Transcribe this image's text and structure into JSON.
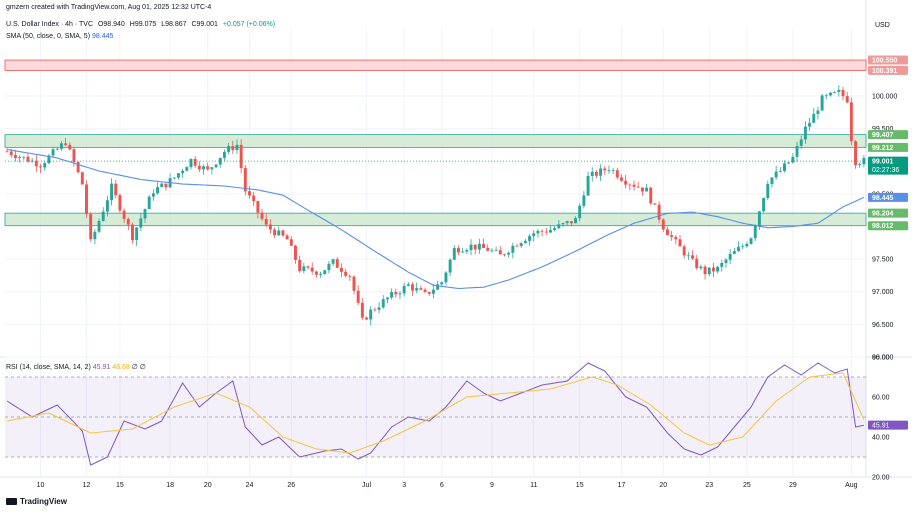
{
  "header": {
    "created_by": "gmzern created with TradingView.com, Aug 01, 2025 12:32 UTC-4",
    "symbol_line": "U.S. Dollar Index · 4h · TVC",
    "ohlc": {
      "open": "O98.940",
      "high": "H99.075",
      "low": "L98.867",
      "close": "C99.001",
      "change": "+0.057 (+0.06%)"
    },
    "sma_label": "SMA (50, close, 0, SMA, 5)",
    "sma_value": "98.445",
    "rsi_label": "RSI (14, close, SMA, 14, 2)",
    "rsi_value": "45.91",
    "rsi_ma_value": "48.68",
    "rsi_placeholders": "∅ ∅"
  },
  "currency": "USD",
  "branding": "TradingView",
  "colors": {
    "up": "#26a69a",
    "down": "#ef5350",
    "sma": "#5b8ee6",
    "rsi": "#7e57c2",
    "rsi_ma": "#f5c542",
    "zone_green": "#c8e6c9",
    "zone_red": "#ffcdd2"
  },
  "chart_data": [
    {
      "type": "candlestick",
      "title": "U.S. Dollar Index · 4h · TVC",
      "ylabel": "USD",
      "ylim": [
        96.0,
        100.75
      ],
      "price_ticks": [
        "100.000",
        "99.500",
        "98.500",
        "97.500",
        "97.000",
        "96.500",
        "96.000"
      ],
      "x_tick_labels": [
        "10",
        "12",
        "15",
        "18",
        "20",
        "24",
        "26",
        "Jul",
        "3",
        "6",
        "9",
        "11",
        "15",
        "17",
        "20",
        "23",
        "25",
        "29",
        "Aug"
      ],
      "x_tick_index": [
        8,
        19,
        27,
        39,
        48,
        58,
        68,
        86,
        95,
        104,
        116,
        126,
        137,
        147,
        157,
        168,
        177,
        188,
        202
      ],
      "count": 206,
      "path_points": [
        [
          0,
          99.15
        ],
        [
          8,
          98.95
        ],
        [
          14,
          99.3
        ],
        [
          18,
          98.65
        ],
        [
          20,
          97.75
        ],
        [
          25,
          98.6
        ],
        [
          30,
          97.85
        ],
        [
          35,
          98.55
        ],
        [
          38,
          98.65
        ],
        [
          40,
          98.75
        ],
        [
          44,
          99.02
        ],
        [
          48,
          98.85
        ],
        [
          52,
          99.15
        ],
        [
          55,
          99.25
        ],
        [
          57,
          98.55
        ],
        [
          62,
          98.0
        ],
        [
          67,
          97.8
        ],
        [
          70,
          97.35
        ],
        [
          75,
          97.3
        ],
        [
          78,
          97.45
        ],
        [
          82,
          97.25
        ],
        [
          85,
          96.55
        ],
        [
          87,
          96.7
        ],
        [
          91,
          96.9
        ],
        [
          96,
          97.1
        ],
        [
          100,
          96.95
        ],
        [
          104,
          97.15
        ],
        [
          107,
          97.65
        ],
        [
          111,
          97.7
        ],
        [
          115,
          97.65
        ],
        [
          118,
          97.55
        ],
        [
          122,
          97.75
        ],
        [
          126,
          97.9
        ],
        [
          130,
          97.95
        ],
        [
          136,
          98.1
        ],
        [
          139,
          98.75
        ],
        [
          144,
          98.9
        ],
        [
          148,
          98.7
        ],
        [
          153,
          98.55
        ],
        [
          157,
          98.0
        ],
        [
          160,
          97.75
        ],
        [
          164,
          97.45
        ],
        [
          167,
          97.3
        ],
        [
          170,
          97.35
        ],
        [
          173,
          97.55
        ],
        [
          176,
          97.7
        ],
        [
          178,
          97.85
        ],
        [
          180,
          98.25
        ],
        [
          182,
          98.7
        ],
        [
          185,
          98.85
        ],
        [
          188,
          99.05
        ],
        [
          191,
          99.5
        ],
        [
          193,
          99.7
        ],
        [
          195,
          99.95
        ],
        [
          199,
          100.05
        ],
        [
          201,
          99.95
        ],
        [
          202,
          99.35
        ],
        [
          203,
          99.0
        ],
        [
          205,
          99.0
        ]
      ],
      "sma_points": [
        [
          0,
          99.18
        ],
        [
          12,
          99.05
        ],
        [
          22,
          98.85
        ],
        [
          32,
          98.72
        ],
        [
          42,
          98.65
        ],
        [
          52,
          98.62
        ],
        [
          60,
          98.56
        ],
        [
          66,
          98.48
        ],
        [
          72,
          98.25
        ],
        [
          80,
          97.95
        ],
        [
          88,
          97.62
        ],
        [
          96,
          97.3
        ],
        [
          102,
          97.1
        ],
        [
          108,
          97.05
        ],
        [
          114,
          97.07
        ],
        [
          120,
          97.18
        ],
        [
          128,
          97.38
        ],
        [
          136,
          97.62
        ],
        [
          144,
          97.88
        ],
        [
          150,
          98.05
        ],
        [
          158,
          98.2
        ],
        [
          164,
          98.22
        ],
        [
          170,
          98.15
        ],
        [
          176,
          98.05
        ],
        [
          182,
          97.98
        ],
        [
          188,
          98.0
        ],
        [
          194,
          98.05
        ],
        [
          200,
          98.3
        ],
        [
          205,
          98.445
        ]
      ],
      "zones": [
        {
          "name": "resistance",
          "label_top": "100.550",
          "label_bottom": "100.391",
          "top": 100.55,
          "bottom": 100.391
        },
        {
          "name": "upper-support",
          "label_top": "99.407",
          "label_bottom": "99.212",
          "top": 99.407,
          "bottom": 99.212
        },
        {
          "name": "lower-support",
          "label_top": "98.204",
          "label_bottom": "98.012",
          "top": 98.204,
          "bottom": 98.012
        }
      ],
      "last_price": {
        "value": 99.001,
        "label": "99.001",
        "countdown": "02:27:36"
      },
      "sma_label": {
        "value": 98.445,
        "label": "98.445"
      }
    },
    {
      "type": "line",
      "title": "RSI (14, close, SMA, 14, 2)",
      "ylim": [
        20,
        80
      ],
      "y_ticks": [
        "80.00",
        "60.00",
        "40.00",
        "20.00"
      ],
      "bands": [
        70,
        50,
        30
      ],
      "series": [
        {
          "name": "RSI",
          "points": [
            [
              0,
              58
            ],
            [
              6,
              50
            ],
            [
              12,
              56
            ],
            [
              18,
              43
            ],
            [
              20,
              26
            ],
            [
              24,
              30
            ],
            [
              28,
              48
            ],
            [
              33,
              44
            ],
            [
              37,
              48
            ],
            [
              42,
              67
            ],
            [
              46,
              55
            ],
            [
              50,
              62
            ],
            [
              54,
              68
            ],
            [
              57,
              45
            ],
            [
              61,
              36
            ],
            [
              65,
              40
            ],
            [
              70,
              30
            ],
            [
              76,
              33
            ],
            [
              80,
              34
            ],
            [
              84,
              29
            ],
            [
              87,
              32
            ],
            [
              92,
              45
            ],
            [
              96,
              50
            ],
            [
              101,
              48
            ],
            [
              105,
              55
            ],
            [
              110,
              68
            ],
            [
              114,
              62
            ],
            [
              118,
              58
            ],
            [
              123,
              62
            ],
            [
              128,
              66
            ],
            [
              134,
              68
            ],
            [
              139,
              77
            ],
            [
              143,
              73
            ],
            [
              148,
              60
            ],
            [
              153,
              55
            ],
            [
              158,
              42
            ],
            [
              162,
              34
            ],
            [
              166,
              31
            ],
            [
              170,
              35
            ],
            [
              174,
              45
            ],
            [
              178,
              55
            ],
            [
              182,
              70
            ],
            [
              186,
              76
            ],
            [
              190,
              71
            ],
            [
              194,
              77
            ],
            [
              198,
              72
            ],
            [
              201,
              74
            ],
            [
              203,
              45
            ],
            [
              205,
              45.91
            ]
          ]
        },
        {
          "name": "RSI MA",
          "points": [
            [
              0,
              48
            ],
            [
              10,
              52
            ],
            [
              20,
              42
            ],
            [
              30,
              44
            ],
            [
              40,
              55
            ],
            [
              50,
              62
            ],
            [
              58,
              55
            ],
            [
              66,
              40
            ],
            [
              74,
              34
            ],
            [
              82,
              32
            ],
            [
              90,
              38
            ],
            [
              100,
              48
            ],
            [
              110,
              60
            ],
            [
              120,
              62
            ],
            [
              130,
              64
            ],
            [
              140,
              70
            ],
            [
              146,
              66
            ],
            [
              154,
              56
            ],
            [
              162,
              42
            ],
            [
              168,
              36
            ],
            [
              176,
              40
            ],
            [
              184,
              58
            ],
            [
              192,
              70
            ],
            [
              200,
              72
            ],
            [
              205,
              48.68
            ]
          ]
        }
      ]
    }
  ]
}
